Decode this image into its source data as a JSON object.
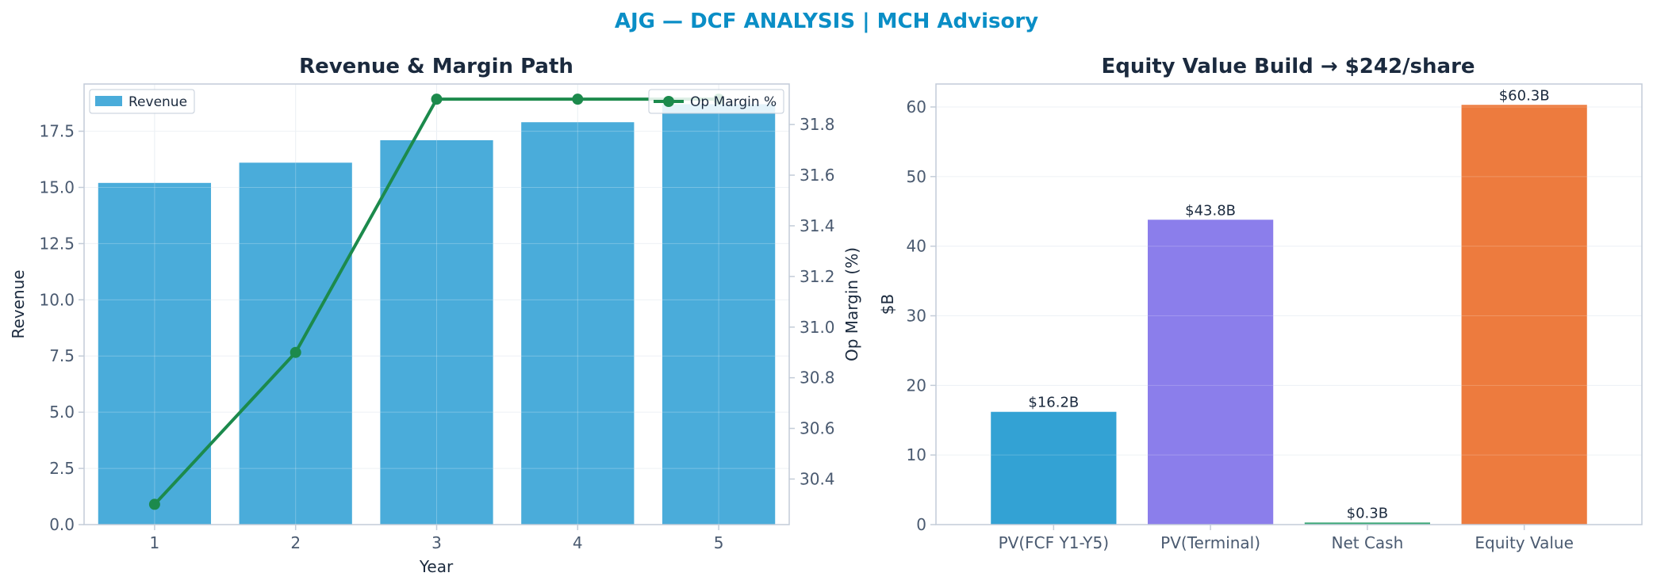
{
  "suptitle": "AJG — DCF ANALYSIS | MCH Advisory",
  "colors": {
    "title": "#0a8ec6",
    "text": "#1b2a3e",
    "tick": "#4a5a70",
    "axis": "#c3ccd8",
    "grid": "#e9eef3",
    "revenue": "#4aacda",
    "margin": "#1c8a4c"
  },
  "chart_data": [
    {
      "type": "bar",
      "title": "Revenue & Margin Path",
      "xlabel": "Year",
      "ylabel": "Revenue",
      "y2label": "Op Margin (%)",
      "categories": [
        "1",
        "2",
        "3",
        "4",
        "5"
      ],
      "ylim": [
        0,
        19.6
      ],
      "yticks": [
        "0.0",
        "2.5",
        "5.0",
        "7.5",
        "10.0",
        "12.5",
        "15.0",
        "17.5"
      ],
      "y2lim": [
        30.22,
        31.96
      ],
      "y2ticks": [
        "30.4",
        "30.6",
        "30.8",
        "31.0",
        "31.2",
        "31.4",
        "31.6",
        "31.8"
      ],
      "grid": true,
      "series": [
        {
          "name": "Revenue",
          "kind": "bar",
          "axis": "left",
          "color": "#4aacda",
          "values": [
            15.2,
            16.1,
            17.1,
            17.9,
            18.7
          ]
        },
        {
          "name": "Op Margin %",
          "kind": "line",
          "axis": "right",
          "color": "#1c8a4c",
          "values": [
            30.3,
            30.9,
            31.9,
            31.9,
            31.9
          ]
        }
      ],
      "legend": [
        {
          "label": "Revenue",
          "placement": "top-left"
        },
        {
          "label": "Op Margin %",
          "placement": "top-right"
        }
      ]
    },
    {
      "type": "bar",
      "title": "Equity Value Build → $242/share",
      "xlabel": "",
      "ylabel": "$B",
      "categories": [
        "PV(FCF Y1-Y5)",
        "PV(Terminal)",
        "Net Cash",
        "Equity Value"
      ],
      "values": [
        16.2,
        43.8,
        0.3,
        60.3
      ],
      "value_labels": [
        "$16.2B",
        "$43.8B",
        "$0.3B",
        "$60.3B"
      ],
      "colors": [
        "#33a2d4",
        "#8b7eeb",
        "#3ba776",
        "#ed7b3e"
      ],
      "ylim": [
        0,
        63.3
      ],
      "yticks": [
        "0",
        "10",
        "20",
        "30",
        "40",
        "50",
        "60"
      ],
      "grid": true
    }
  ]
}
